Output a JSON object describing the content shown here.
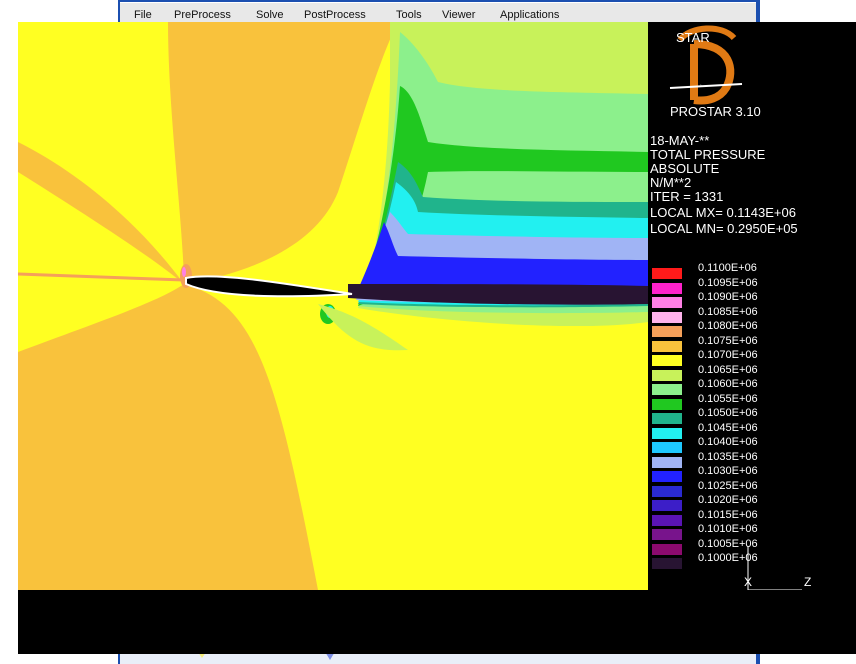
{
  "menubar": {
    "items": [
      "File",
      "PreProcess",
      "Solve",
      "PostProcess",
      "Tools",
      "Viewer",
      "Applications"
    ]
  },
  "logo": {
    "top_text": "STAR",
    "letter": "D",
    "product": "PROSTAR 3.10"
  },
  "info": {
    "date": "18-MAY-**",
    "quantity": "TOTAL PRESSURE",
    "mode": "ABSOLUTE",
    "units": "N/M**2",
    "iter": "ITER =    1331",
    "local_max": "LOCAL MX= 0.1143E+06",
    "local_min": "LOCAL MN= 0.2950E+05"
  },
  "legend": {
    "levels": [
      {
        "label": "0.1100E+06",
        "color": "#ff1a1a"
      },
      {
        "label": "0.1095E+06",
        "color": "#ff22cc"
      },
      {
        "label": "0.1090E+06",
        "color": "#ff80e6"
      },
      {
        "label": "0.1085E+06",
        "color": "#ffb3ec"
      },
      {
        "label": "0.1080E+06",
        "color": "#f5a05a"
      },
      {
        "label": "0.1075E+06",
        "color": "#f9c23c"
      },
      {
        "label": "0.1070E+06",
        "color": "#ffff22"
      },
      {
        "label": "0.1065E+06",
        "color": "#c8f25a"
      },
      {
        "label": "0.1060E+06",
        "color": "#8cf08c"
      },
      {
        "label": "0.1055E+06",
        "color": "#20c820"
      },
      {
        "label": "0.1050E+06",
        "color": "#20b48c"
      },
      {
        "label": "0.1045E+06",
        "color": "#22f0f0"
      },
      {
        "label": "0.1040E+06",
        "color": "#1ec8ff"
      },
      {
        "label": "0.1035E+06",
        "color": "#a0b4f5"
      },
      {
        "label": "0.1030E+06",
        "color": "#2222ff"
      },
      {
        "label": "0.1025E+06",
        "color": "#2a2ad2"
      },
      {
        "label": "0.1020E+06",
        "color": "#3c1ec8"
      },
      {
        "label": "0.1015E+06",
        "color": "#5a14b4"
      },
      {
        "label": "0.1010E+06",
        "color": "#78148c"
      },
      {
        "label": "0.1005E+06",
        "color": "#8c0a6e"
      },
      {
        "label": "0.1000E+06",
        "color": "#281432"
      }
    ]
  },
  "axes": {
    "horizontal": "Z",
    "vertical": "X"
  },
  "colors": {
    "far_field": "#ffff22",
    "near_field": "#f9c23c",
    "airfoil": "#000000",
    "airfoil_outline": "#ffffff",
    "window_frame": "#1b4fb0"
  }
}
